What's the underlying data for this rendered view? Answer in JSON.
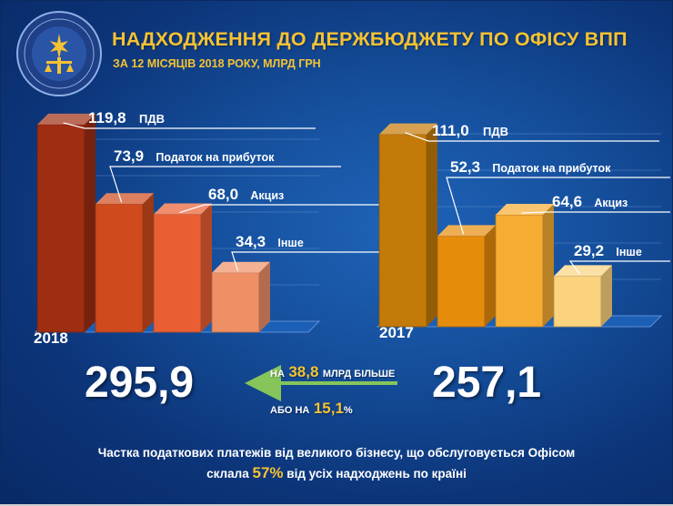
{
  "header": {
    "title": "НАДХОДЖЕННЯ ДО ДЕРЖБЮДЖЕТУ ПО ОФІСУ ВПП",
    "subtitle": "ЗА 12 МІСЯЦІВ 2018 РОКУ, МЛРД ГРН"
  },
  "chart_data": [
    {
      "type": "bar",
      "categories": [
        "ПДВ",
        "Податок на прибуток",
        "Акциз",
        "Інше"
      ],
      "values": [
        119.8,
        73.9,
        68.0,
        34.3
      ],
      "value_labels": [
        "119,8",
        "73,9",
        "68,0",
        "34,3"
      ],
      "year_label": "2018",
      "total": "295,9",
      "colors": [
        "#9e2d12",
        "#cf4a1c",
        "#e95f33",
        "#ef8f66"
      ],
      "ylim": [
        0,
        130
      ]
    },
    {
      "type": "bar",
      "categories": [
        "ПДВ",
        "Податок на прибуток",
        "Акциз",
        "Інше"
      ],
      "values": [
        111.0,
        52.3,
        64.6,
        29.2
      ],
      "value_labels": [
        "111,0",
        "52,3",
        "64,6",
        "29,2"
      ],
      "year_label": "2017",
      "total": "257,1",
      "colors": [
        "#c47a08",
        "#e68c0b",
        "#f6ac33",
        "#fbd27e"
      ],
      "ylim": [
        0,
        130
      ]
    }
  ],
  "comparison": {
    "prefix_1": "НА",
    "amount": "38,8",
    "suffix_1": "МЛРД БІЛЬШЕ",
    "prefix_2": "АБО НА",
    "percent": "15,1",
    "percent_sign": "%",
    "arrow_color": "#86c55a"
  },
  "footer": {
    "line1": "Частка податкових платежів від великого бізнесу, що обслуговується Офісом",
    "line2_prefix": "склала",
    "line2_value": "57%",
    "line2_suffix": "від усіх надходжень по країні"
  },
  "colors": {
    "title": "#f5c233",
    "background": "#154f9c",
    "text": "#ffffff"
  },
  "logo": {
    "icon": "tax-service-emblem"
  }
}
